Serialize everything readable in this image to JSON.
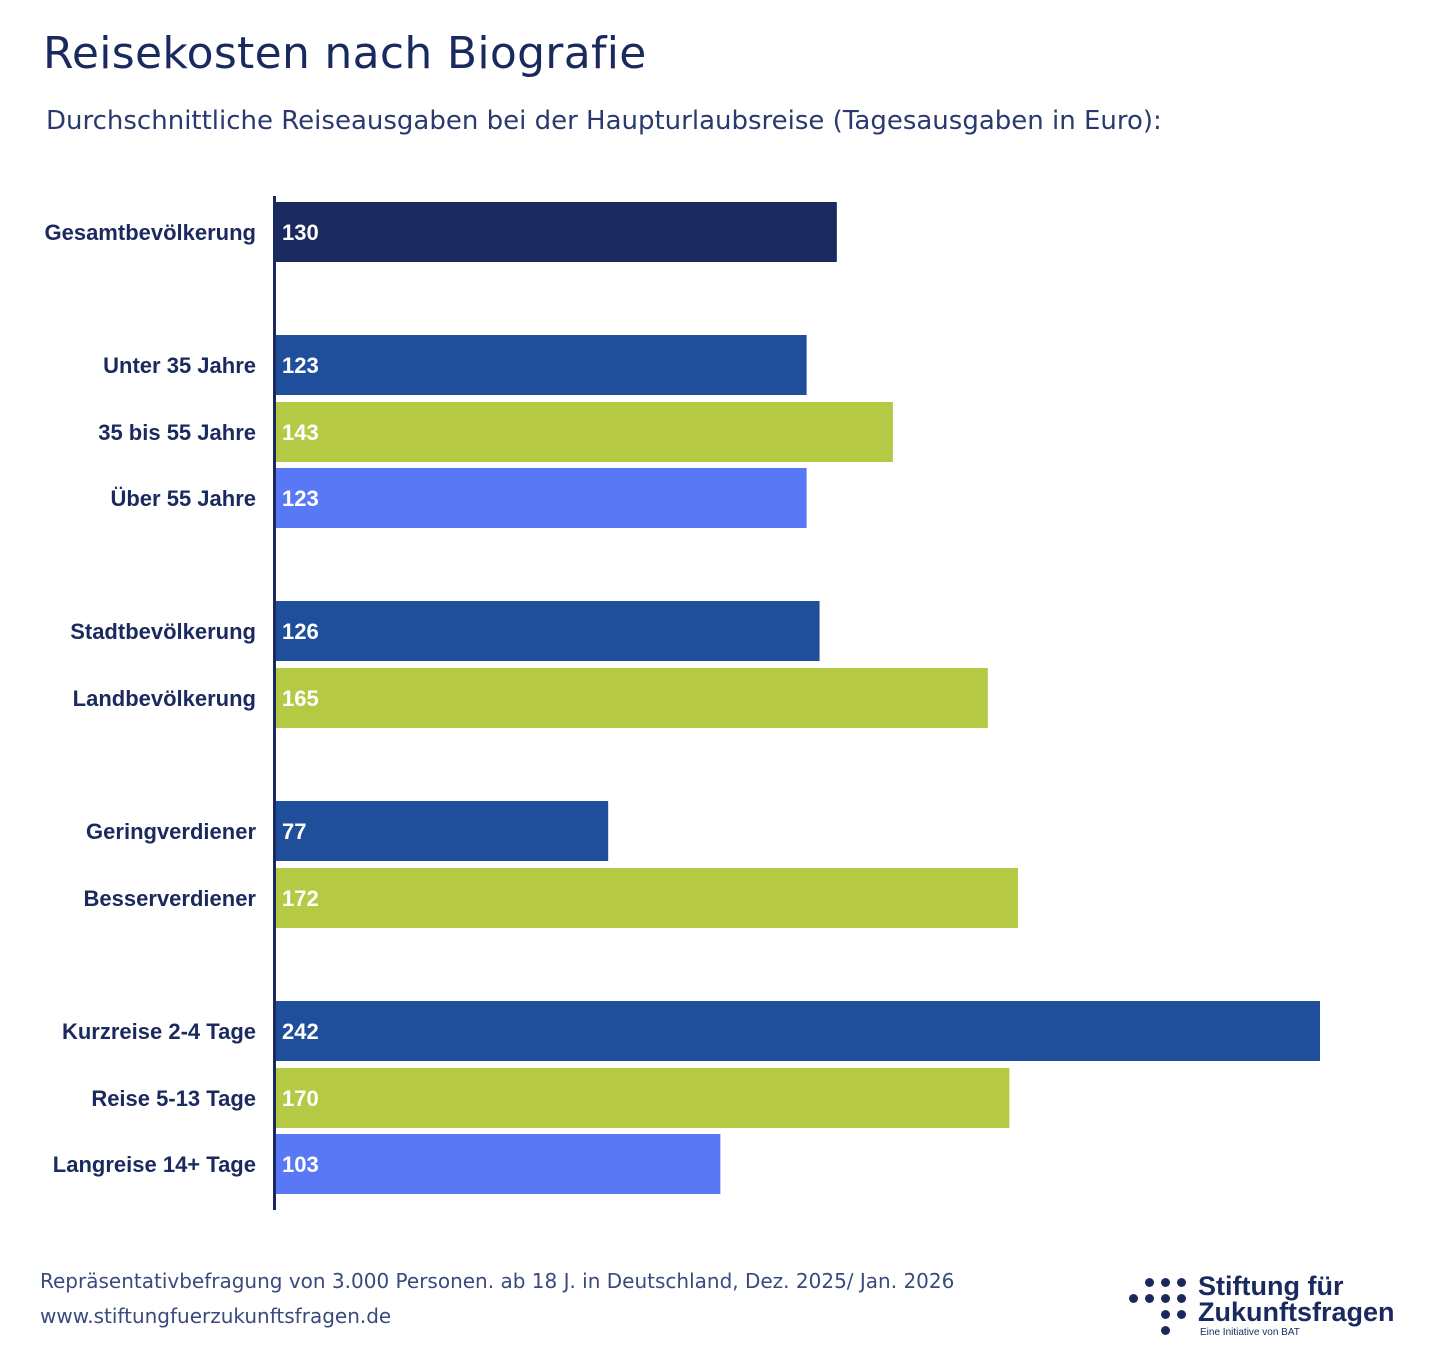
{
  "title": "Reisekosten nach Biografie",
  "subtitle": "Durchschnittliche Reiseausgaben bei der Haupturlaubsreise (Tagesausgaben in Euro):",
  "footer": {
    "source": "Repräsentativbefragung von 3.000 Personen. ab 18 J. in Deutschland, Dez. 2025/ Jan. 2026",
    "url": "www.stiftungfuerzukunftsfragen.de"
  },
  "logo": {
    "line1": "Stiftung für",
    "line2": "Zukunftsfragen",
    "tagline": "Eine Initiative von BAT"
  },
  "colors": {
    "total": "#1a2a5e",
    "blue": "#1f4f9a",
    "green": "#b5c944",
    "light_blue": "#5878f5",
    "axis": "#1a2a5e"
  },
  "chart_data": {
    "type": "bar",
    "orientation": "horizontal",
    "title": "Reisekosten nach Biografie",
    "xlim": [
      0,
      242
    ],
    "grid": false,
    "categories": [
      "Gesamtbevölkerung",
      "Unter 35 Jahre",
      "35 bis 55 Jahre",
      "Über 55 Jahre",
      "Stadtbevölkerung",
      "Landbevölkerung",
      "Geringverdiener",
      "Besserverdiener",
      "Kurzreise 2-4 Tage",
      "Reise 5-13 Tage",
      "Langreise 14+ Tage"
    ],
    "values": [
      130,
      123,
      143,
      123,
      126,
      165,
      77,
      172,
      242,
      170,
      103
    ],
    "bar_colors": [
      "#1a2a5e",
      "#1f4f9a",
      "#b5c944",
      "#5878f5",
      "#1f4f9a",
      "#b5c944",
      "#1f4f9a",
      "#b5c944",
      "#1f4f9a",
      "#b5c944",
      "#5878f5"
    ]
  }
}
